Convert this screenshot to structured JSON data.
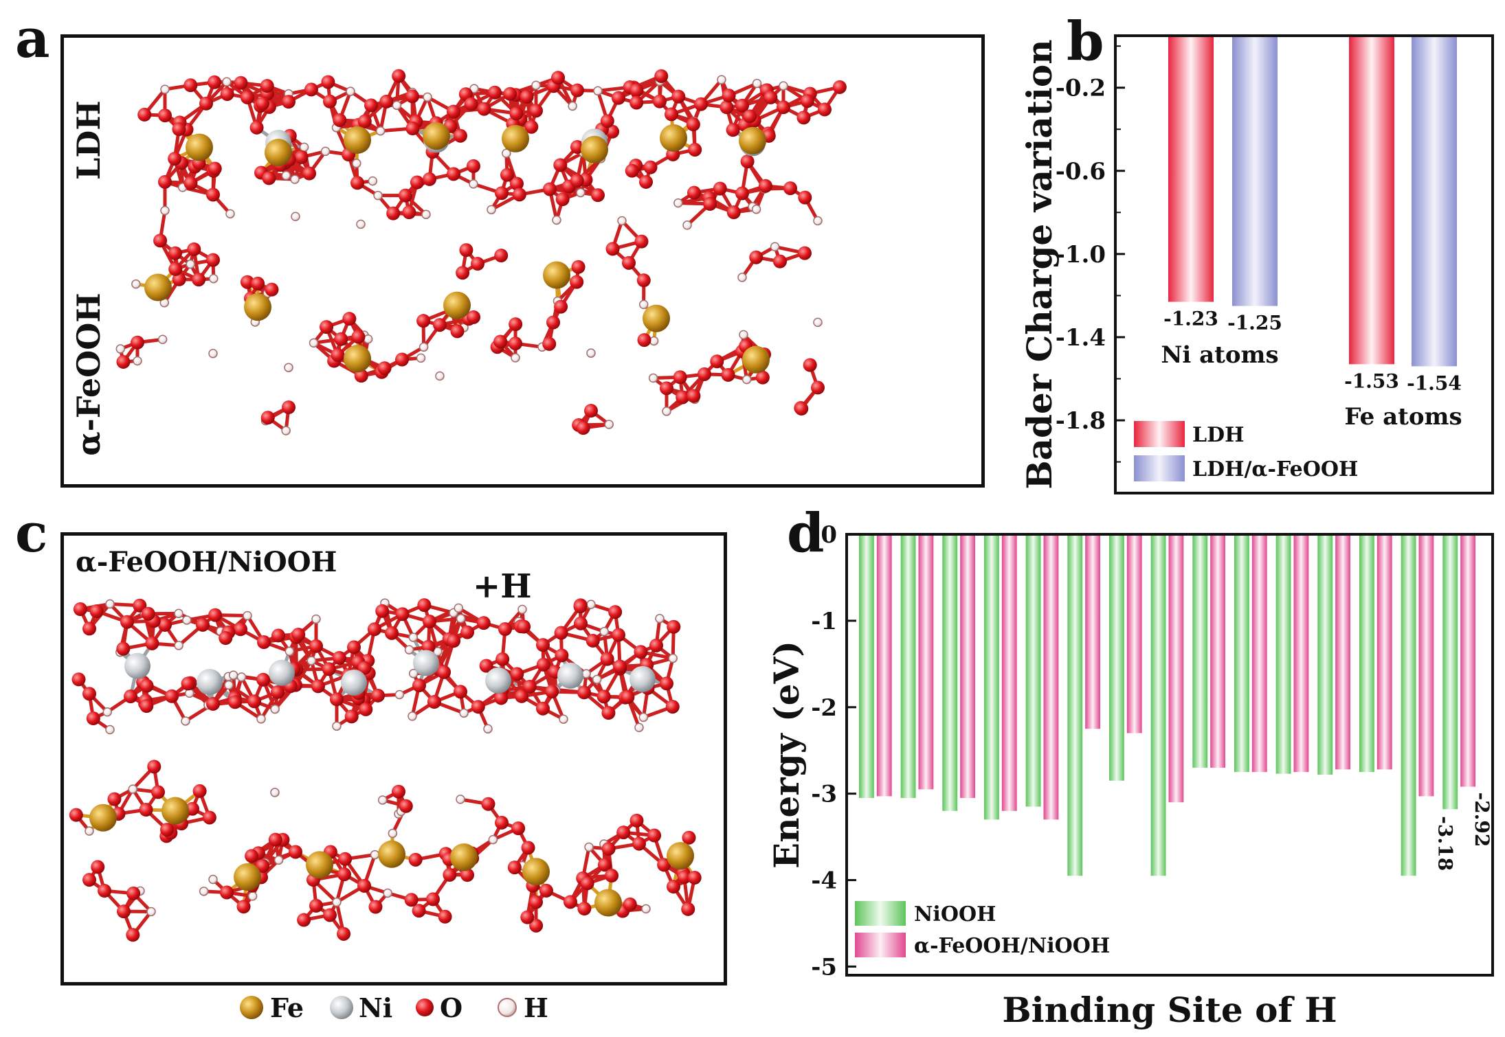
{
  "panel_labels": {
    "a": "a",
    "b": "b",
    "c": "c",
    "d": "d"
  },
  "panel_a": {
    "label_ldh": "LDH",
    "label_feooh": "α-FeOOH"
  },
  "panel_c": {
    "title": "α-FeOOH/NiOOH",
    "plus_h": "+H"
  },
  "atom_legend": [
    {
      "symbol": "Fe",
      "color": "#c8901a"
    },
    {
      "symbol": "Ni",
      "color": "#c9ced2"
    },
    {
      "symbol": "O",
      "color": "#e0161c"
    },
    {
      "symbol": "H",
      "color": "#f2e6e6"
    }
  ],
  "colors": {
    "ldh": "#e8253f",
    "composite": "#8a8fd0",
    "niooh": "#5cc45a",
    "feooh_niooh": "#e0488f"
  },
  "chart_data": [
    {
      "panel": "b",
      "type": "bar",
      "title": "",
      "ylabel": "Bader Charge variation",
      "xlabel": "",
      "ylim": [
        -2.15,
        0.05
      ],
      "yticks": [
        -0.2,
        -0.6,
        -1.0,
        -1.4,
        -1.8
      ],
      "ytick_labels": [
        "-0.2",
        "-0.6",
        "-1.0",
        "-1.4",
        "-1.8"
      ],
      "categories": [
        "Ni atoms",
        "Fe atoms"
      ],
      "series": [
        {
          "name": "LDH",
          "values": [
            -1.23,
            -1.53
          ],
          "value_labels": [
            "-1.23",
            "-1.53"
          ]
        },
        {
          "name": "LDH/α-FeOOH",
          "values": [
            -1.25,
            -1.54
          ],
          "value_labels": [
            "-1.25",
            "-1.54"
          ]
        }
      ],
      "legend": "bottom-left"
    },
    {
      "panel": "d",
      "type": "bar",
      "title": "",
      "ylabel": "Energy (eV)",
      "xlabel": "Binding Site of H",
      "ylim": [
        -5.1,
        0
      ],
      "yticks": [
        0,
        -1,
        -2,
        -3,
        -4,
        -5
      ],
      "ytick_labels": [
        "0",
        "-1",
        "-2",
        "-3",
        "-4",
        "-5"
      ],
      "series": [
        {
          "name": "NiOOH",
          "values": [
            -3.05,
            -3.05,
            -3.2,
            -3.3,
            -3.15,
            -3.95,
            -2.85,
            -3.95,
            -2.7,
            -2.75,
            -2.77,
            -2.78,
            -2.75,
            -3.95,
            -3.18
          ]
        },
        {
          "name": "α-FeOOH/NiOOH",
          "values": [
            -3.03,
            -2.95,
            -3.05,
            -3.2,
            -3.3,
            -2.25,
            -2.3,
            -3.1,
            -2.7,
            -2.75,
            -2.75,
            -2.72,
            -2.72,
            -3.03,
            -2.92
          ]
        }
      ],
      "annotations": [
        "-3.18",
        "-2.92"
      ],
      "legend": "bottom-left"
    }
  ]
}
